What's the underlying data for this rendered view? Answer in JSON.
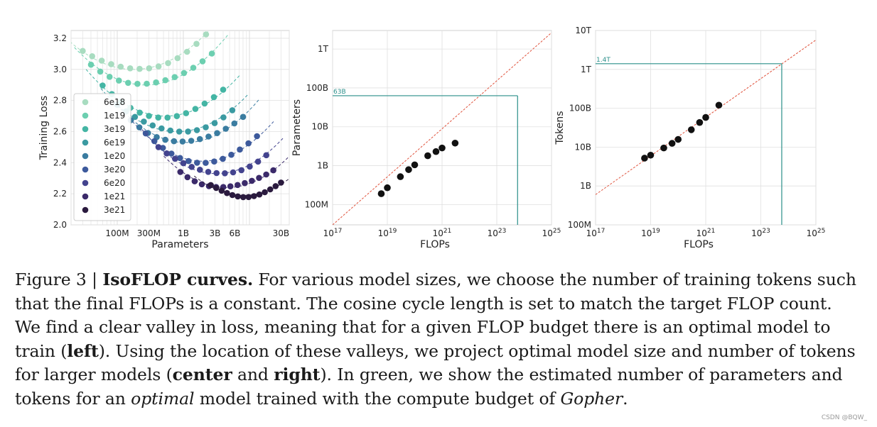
{
  "caption": {
    "lead": "Figure 3 | ",
    "title": "IsoFLOP curves.",
    "p1": " For various model sizes, we choose the number of training tokens such that the final FLOPs is a constant. The cosine cycle length is set to match the target FLOP count. We find a clear valley in loss, meaning that for a given FLOP budget there is an optimal model to train (",
    "left": "left",
    "p2": "). Using the location of these valleys, we project optimal model size and number of tokens for larger models (",
    "center": "center",
    "p3": " and ",
    "right": "right",
    "p4": "). In green, we show the estimated number of parameters and tokens for an ",
    "optimal": "optimal",
    "p5": " model trained with the compute budget of ",
    "gopher": "Gopher",
    "p6": "."
  },
  "watermark": "CSDN @BQW_",
  "chart_data": [
    {
      "type": "scatter",
      "title": "",
      "xlabel": "Parameters",
      "ylabel": "Training Loss",
      "xscale": "log",
      "xlim": [
        20000000,
        40000000000
      ],
      "ylim": [
        2.0,
        3.25
      ],
      "x_ticks": [
        {
          "value": 100000000,
          "label": "100M"
        },
        {
          "value": 300000000,
          "label": "300M"
        },
        {
          "value": 1000000000,
          "label": "1B"
        },
        {
          "value": 3000000000,
          "label": "3B"
        },
        {
          "value": 6000000000,
          "label": "6B"
        },
        {
          "value": 30000000000,
          "label": "30B"
        }
      ],
      "y_ticks": [
        {
          "value": 2.0,
          "label": "2.0"
        },
        {
          "value": 2.2,
          "label": "2.2"
        },
        {
          "value": 2.4,
          "label": "2.4"
        },
        {
          "value": 2.6,
          "label": "2.6"
        },
        {
          "value": 2.8,
          "label": "2.8"
        },
        {
          "value": 3.0,
          "label": "3.0"
        },
        {
          "value": 3.2,
          "label": "3.2"
        }
      ],
      "legend_position": "center-left",
      "series": [
        {
          "name": "6e18",
          "color": "#a8dcc0",
          "opt": 200000000,
          "min": 3.0,
          "a": 0.12,
          "range": [
            30000000,
            2200000000
          ],
          "points": 14
        },
        {
          "name": "1e19",
          "color": "#6ccfb0",
          "opt": 300000000,
          "min": 2.9,
          "a": 0.13,
          "range": [
            40000000,
            2700000000
          ],
          "points": 14
        },
        {
          "name": "3e19",
          "color": "#44b5a4",
          "opt": 600000000,
          "min": 2.7,
          "a": 0.13,
          "range": [
            60000000,
            4000000000
          ],
          "points": 14
        },
        {
          "name": "6e19",
          "color": "#3a9aa1",
          "opt": 900000000,
          "min": 2.6,
          "a": 0.13,
          "range": [
            100000000,
            5500000000
          ],
          "points": 14
        },
        {
          "name": "1e20",
          "color": "#3a7ca0",
          "opt": 1200000000,
          "min": 2.53,
          "a": 0.14,
          "range": [
            160000000,
            8000000000
          ],
          "points": 14
        },
        {
          "name": "3e20",
          "color": "#3d5a9c",
          "opt": 2200000000,
          "min": 2.41,
          "a": 0.14,
          "range": [
            270000000,
            13000000000
          ],
          "points": 14
        },
        {
          "name": "6e20",
          "color": "#43438e",
          "opt": 3500000000,
          "min": 2.33,
          "a": 0.14,
          "range": [
            420000000,
            18000000000
          ],
          "points": 14
        },
        {
          "name": "1e21",
          "color": "#3b2a6a",
          "opt": 5000000000,
          "min": 2.24,
          "a": 0.14,
          "range": [
            900000000,
            23000000000
          ],
          "points": 14
        },
        {
          "name": "3e21",
          "color": "#2a1a3e",
          "opt": 9000000000,
          "min": 2.19,
          "a": 0.14,
          "range": [
            2600000000,
            30000000000
          ],
          "points": 14
        }
      ]
    },
    {
      "type": "scatter",
      "title": "",
      "xlabel": "FLOPs",
      "ylabel": "Parameters",
      "xscale": "log",
      "yscale": "log",
      "xlim": [
        1e+17,
        1e+25
      ],
      "ylim": [
        30000000,
        3000000000000
      ],
      "x_ticks": [
        {
          "value": 1e+17,
          "base": "10",
          "exp": "17"
        },
        {
          "value": 1e+19,
          "base": "10",
          "exp": "19"
        },
        {
          "value": 1e+21,
          "base": "10",
          "exp": "21"
        },
        {
          "value": 1e+23,
          "base": "10",
          "exp": "23"
        },
        {
          "value": 1e+25,
          "base": "10",
          "exp": "25"
        }
      ],
      "y_ticks": [
        {
          "value": 100000000,
          "label": "100M"
        },
        {
          "value": 1000000000,
          "label": "1B"
        },
        {
          "value": 10000000000,
          "label": "10B"
        },
        {
          "value": 100000000000,
          "label": "100B"
        },
        {
          "value": 1000000000000,
          "label": "1T"
        }
      ],
      "fit_line": {
        "x": [
          1e+17,
          1e+25
        ],
        "y": [
          30000000,
          2630000000000
        ],
        "color": "#e0533d"
      },
      "annotation": {
        "label": "63B",
        "x": 5.76e+23,
        "y": 63000000000,
        "color": "#2a8f8a"
      },
      "points": [
        {
          "x": 6e+18,
          "y": 190000000
        },
        {
          "x": 1e+19,
          "y": 270000000
        },
        {
          "x": 3e+19,
          "y": 520000000
        },
        {
          "x": 6e+19,
          "y": 790000000
        },
        {
          "x": 1e+20,
          "y": 1050000000
        },
        {
          "x": 3e+20,
          "y": 1800000000
        },
        {
          "x": 6e+20,
          "y": 2300000000
        },
        {
          "x": 1e+21,
          "y": 2850000000
        },
        {
          "x": 3e+21,
          "y": 3800000000
        }
      ]
    },
    {
      "type": "scatter",
      "title": "",
      "xlabel": "FLOPs",
      "ylabel": "Tokens",
      "xscale": "log",
      "yscale": "log",
      "xlim": [
        1e+17,
        1e+25
      ],
      "ylim": [
        100000000,
        10000000000000
      ],
      "x_ticks": [
        {
          "value": 1e+17,
          "base": "10",
          "exp": "17"
        },
        {
          "value": 1e+19,
          "base": "10",
          "exp": "19"
        },
        {
          "value": 1e+21,
          "base": "10",
          "exp": "21"
        },
        {
          "value": 1e+23,
          "base": "10",
          "exp": "23"
        },
        {
          "value": 1e+25,
          "base": "10",
          "exp": "25"
        }
      ],
      "y_ticks": [
        {
          "value": 100000000,
          "label": "100M"
        },
        {
          "value": 1000000000,
          "label": "1B"
        },
        {
          "value": 10000000000,
          "label": "10B"
        },
        {
          "value": 100000000000,
          "label": "100B"
        },
        {
          "value": 1000000000000,
          "label": "1T"
        },
        {
          "value": 10000000000000,
          "label": "10T"
        }
      ],
      "fit_line": {
        "x": [
          1e+17,
          1e+25
        ],
        "y": [
          600000000,
          5700000000000
        ],
        "color": "#e0533d"
      },
      "annotation": {
        "label": "1.4T",
        "x": 5.76e+23,
        "y": 1400000000000,
        "color": "#2a8f8a"
      },
      "points": [
        {
          "x": 6e+18,
          "y": 5200000000
        },
        {
          "x": 1e+19,
          "y": 6200000000
        },
        {
          "x": 3e+19,
          "y": 9500000000
        },
        {
          "x": 6e+19,
          "y": 12500000000
        },
        {
          "x": 1e+20,
          "y": 15800000000
        },
        {
          "x": 3e+20,
          "y": 28000000000
        },
        {
          "x": 6e+20,
          "y": 43000000000
        },
        {
          "x": 1e+21,
          "y": 58000000000
        },
        {
          "x": 3e+21,
          "y": 120000000000
        }
      ]
    }
  ]
}
